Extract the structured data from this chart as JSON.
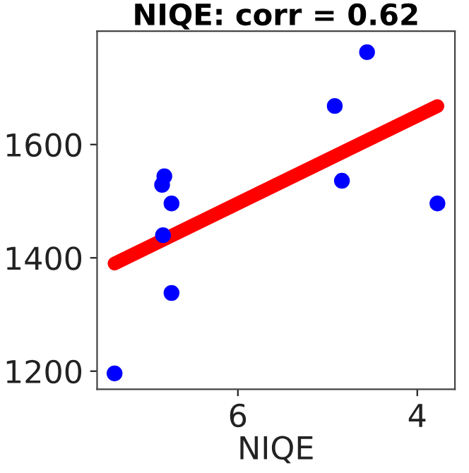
{
  "chart_data": {
    "type": "scatter",
    "title": "NIQE: corr = 0.62",
    "xlabel": "NIQE",
    "x": [
      7.375,
      6.82,
      6.845,
      6.74,
      6.835,
      6.74,
      4.92,
      4.84,
      4.56,
      3.775
    ],
    "values": [
      1196,
      1544,
      1529,
      1496,
      1440,
      1338,
      1668,
      1536,
      1763,
      1496
    ],
    "color": "#0000ff",
    "marker": "circle",
    "series": [
      {
        "type": "line",
        "x": [
          7.375,
          3.775
        ],
        "values": [
          1390,
          1668
        ],
        "color": "#ff0000",
        "marker": "none"
      }
    ],
    "xlim": [
      7.57,
      3.58
    ],
    "xticks": [
      6,
      4
    ],
    "ylim": [
      1168,
      1800
    ],
    "yticks": [
      1200,
      1400,
      1600
    ],
    "grid": false
  }
}
